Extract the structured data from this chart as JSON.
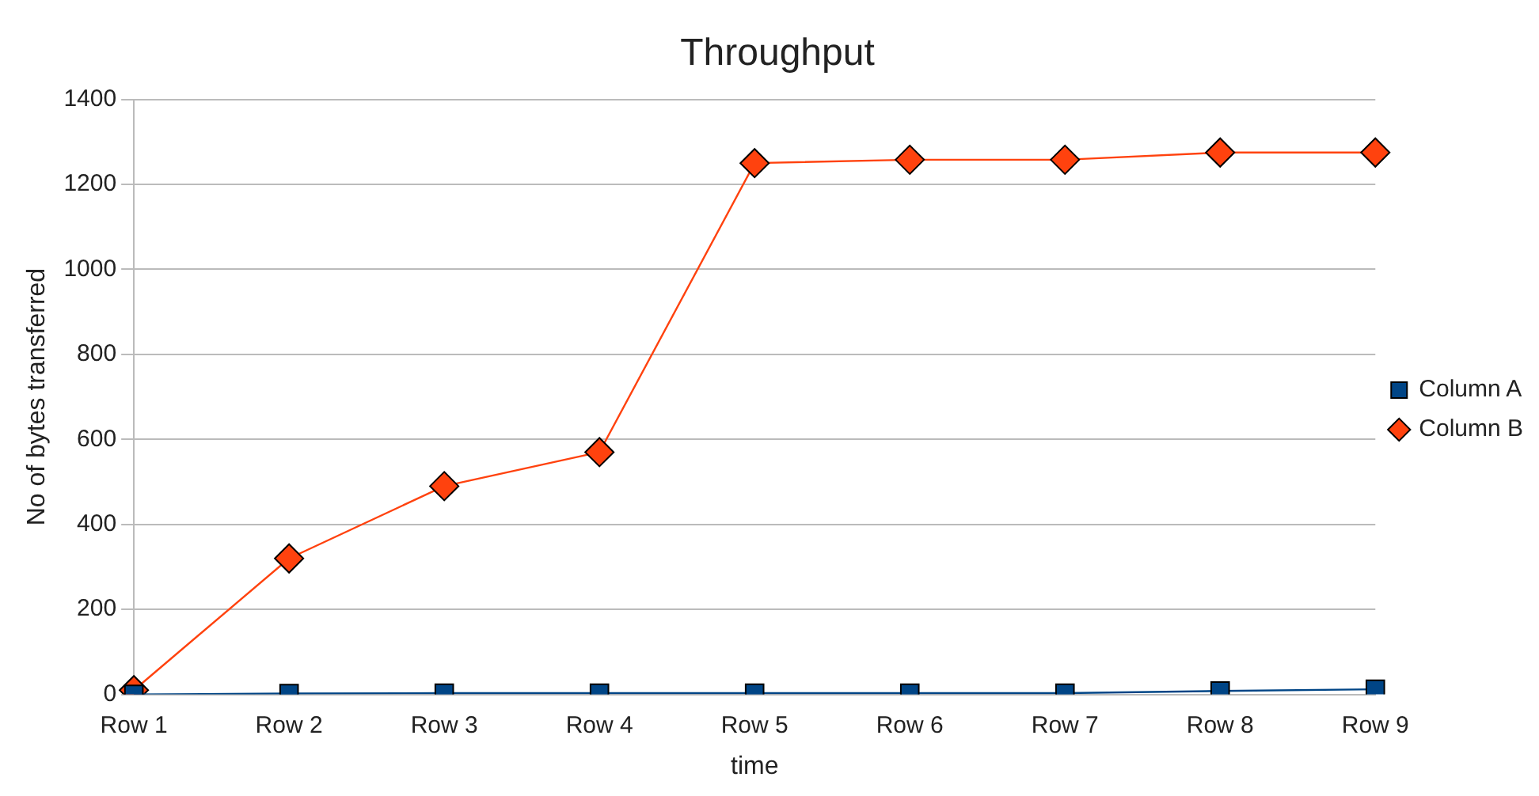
{
  "chart_data": {
    "type": "line",
    "title": "Throughput",
    "xlabel": "time",
    "ylabel": "No of bytes transferred",
    "categories": [
      "Row 1",
      "Row 2",
      "Row 3",
      "Row 4",
      "Row 5",
      "Row 6",
      "Row 7",
      "Row 8",
      "Row 9"
    ],
    "series": [
      {
        "name": "Column A",
        "color": "#004586",
        "marker": "square",
        "values": [
          0,
          2,
          3,
          3,
          3,
          3,
          3,
          8,
          12
        ]
      },
      {
        "name": "Column B",
        "color": "#ff420e",
        "marker": "diamond",
        "values": [
          10,
          320,
          490,
          570,
          1250,
          1258,
          1258,
          1275,
          1275
        ]
      }
    ],
    "ylim": [
      0,
      1400
    ],
    "yticks": [
      0,
      200,
      400,
      600,
      800,
      1000,
      1200,
      1400
    ],
    "grid": "y",
    "legend": "right",
    "line_style": "solid"
  }
}
